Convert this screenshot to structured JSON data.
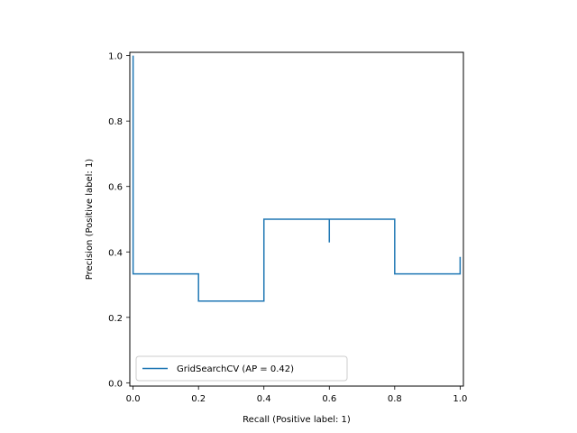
{
  "chart_data": {
    "type": "line",
    "title": "",
    "xlabel": "Recall (Positive label: 1)",
    "ylabel": "Precision (Positive label: 1)",
    "xlim": [
      -0.01,
      1.01
    ],
    "ylim": [
      -0.01,
      1.01
    ],
    "xticks": [
      0.0,
      0.2,
      0.4,
      0.6,
      0.8,
      1.0
    ],
    "xtick_labels": [
      "0.0",
      "0.2",
      "0.4",
      "0.6",
      "0.8",
      "1.0"
    ],
    "yticks": [
      0.0,
      0.2,
      0.4,
      0.6,
      0.8,
      1.0
    ],
    "ytick_labels": [
      "0.0",
      "0.2",
      "0.4",
      "0.6",
      "0.8",
      "1.0"
    ],
    "grid": false,
    "legend_position": "lower-left",
    "drawstyle": "steps-post",
    "series": [
      {
        "name": "GridSearchCV (AP = 0.42)",
        "color": "#1f77b4",
        "x": [
          0.0,
          0.0,
          0.2,
          0.2,
          0.4,
          0.4,
          0.6,
          0.6,
          0.6,
          0.8,
          0.8,
          1.0,
          1.0
        ],
        "y": [
          1.0,
          0.333,
          0.333,
          0.25,
          0.4,
          0.5,
          0.5,
          0.429,
          0.5,
          0.5,
          0.333,
          0.385,
          0.333
        ]
      }
    ]
  }
}
